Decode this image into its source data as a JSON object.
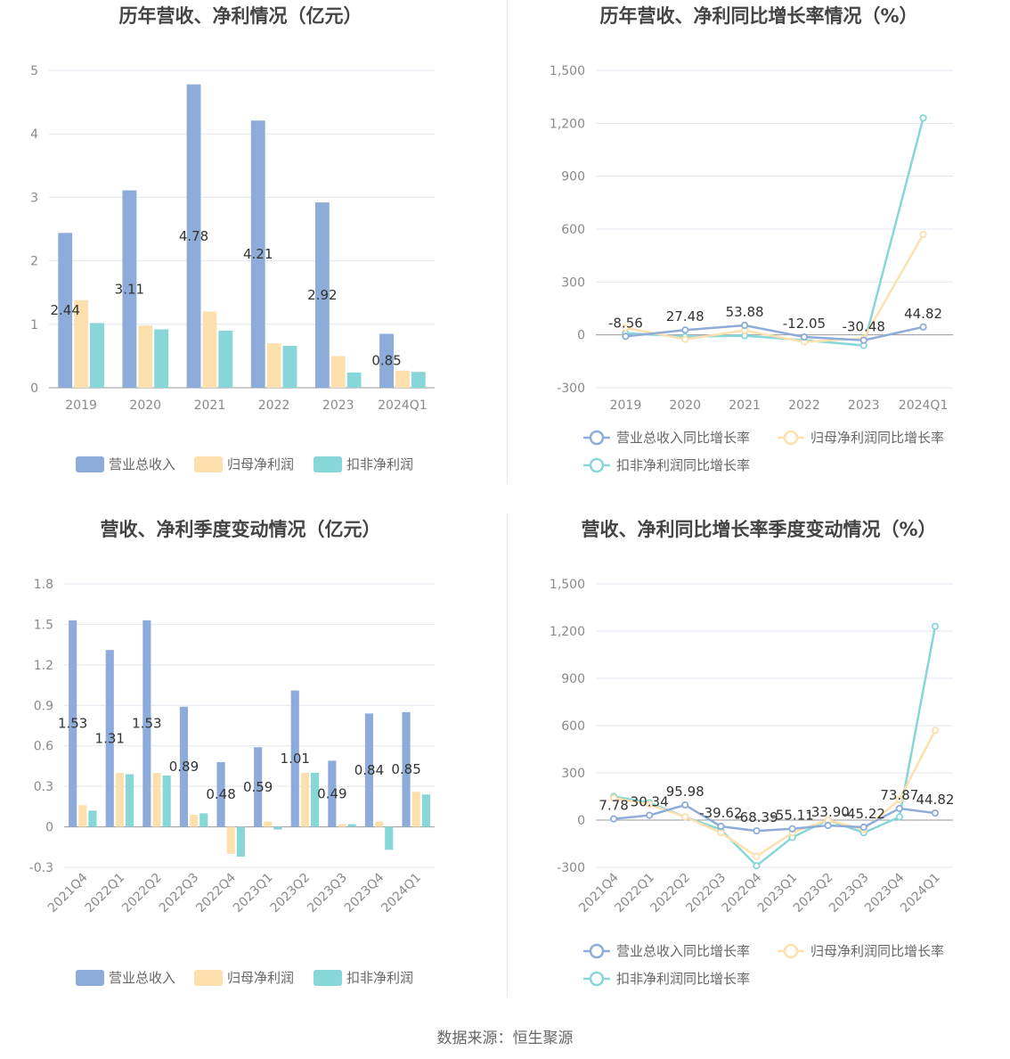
{
  "footer": "数据来源：恒生聚源",
  "colors": {
    "series1": "#8eacda",
    "series2": "#fde0ae",
    "series3": "#87d6d8",
    "grid": "#e3e6ef",
    "axis": "#999999"
  },
  "chart_data": [
    {
      "type": "bar",
      "title": "历年营收、净利情况（亿元）",
      "categories": [
        "2019",
        "2020",
        "2021",
        "2022",
        "2023",
        "2024Q1"
      ],
      "ylim": [
        0,
        5
      ],
      "yticks": [
        "0",
        "1",
        "2",
        "3",
        "4",
        "5"
      ],
      "ytick_values": [
        0,
        1,
        2,
        3,
        4,
        5
      ],
      "series": [
        {
          "name": "营业总收入",
          "values": [
            2.44,
            3.11,
            4.78,
            4.21,
            2.92,
            0.85
          ],
          "labels": [
            "2.44",
            "3.11",
            "4.78",
            "4.21",
            "2.92",
            "0.85"
          ]
        },
        {
          "name": "归母净利润",
          "values": [
            1.38,
            0.98,
            1.2,
            0.7,
            0.5,
            0.27
          ]
        },
        {
          "name": "扣非净利润",
          "values": [
            1.02,
            0.92,
            0.9,
            0.66,
            0.24,
            0.25
          ]
        }
      ],
      "legend": "bottom",
      "grid": true
    },
    {
      "type": "line",
      "title": "历年营收、净利同比增长率情况（%）",
      "categories": [
        "2019",
        "2020",
        "2021",
        "2022",
        "2023",
        "2024Q1"
      ],
      "ylim": [
        -300,
        1500
      ],
      "yticks": [
        "-300",
        "0",
        "300",
        "600",
        "900",
        "1,200",
        "1,500"
      ],
      "ytick_values": [
        -300,
        0,
        300,
        600,
        900,
        1200,
        1500
      ],
      "series": [
        {
          "name": "营业总收入同比增长率",
          "values": [
            -8.56,
            27.48,
            53.88,
            -12.05,
            -30.48,
            44.82
          ],
          "labels": [
            "-8.56",
            "27.48",
            "53.88",
            "-12.05",
            "-30.48",
            "44.82"
          ]
        },
        {
          "name": "归母净利润同比增长率",
          "values": [
            40,
            -25,
            25,
            -40,
            -20,
            570
          ]
        },
        {
          "name": "扣非净利润同比增长率",
          "values": [
            10,
            -10,
            -5,
            -30,
            -60,
            1230
          ]
        }
      ],
      "legend": "bottom",
      "grid": true
    },
    {
      "type": "bar",
      "title": "营收、净利季度变动情况（亿元）",
      "categories": [
        "2021Q4",
        "2022Q1",
        "2022Q2",
        "2022Q3",
        "2022Q4",
        "2023Q1",
        "2023Q2",
        "2023Q3",
        "2023Q4",
        "2024Q1"
      ],
      "ylim": [
        -0.3,
        1.8
      ],
      "yticks": [
        "-0.3",
        "0",
        "0.3",
        "0.6",
        "0.9",
        "1.2",
        "1.5",
        "1.8"
      ],
      "ytick_values": [
        -0.3,
        0,
        0.3,
        0.6,
        0.9,
        1.2,
        1.5,
        1.8
      ],
      "series": [
        {
          "name": "营业总收入",
          "values": [
            1.53,
            1.31,
            1.53,
            0.89,
            0.48,
            0.59,
            1.01,
            0.49,
            0.84,
            0.85
          ],
          "labels": [
            "1.53",
            "1.31",
            "1.53",
            "0.89",
            "0.48",
            "0.59",
            "1.01",
            "0.49",
            "0.84",
            "0.85"
          ]
        },
        {
          "name": "归母净利润",
          "values": [
            0.16,
            0.4,
            0.4,
            0.09,
            -0.2,
            0.04,
            0.4,
            0.02,
            0.04,
            0.26
          ]
        },
        {
          "name": "扣非净利润",
          "values": [
            0.12,
            0.39,
            0.38,
            0.1,
            -0.22,
            -0.02,
            0.4,
            0.02,
            -0.17,
            0.24
          ]
        }
      ],
      "legend": "bottom",
      "grid": true
    },
    {
      "type": "line",
      "title": "营收、净利同比增长率季度变动情况（%）",
      "categories": [
        "2021Q4",
        "2022Q1",
        "2022Q2",
        "2022Q3",
        "2022Q4",
        "2023Q1",
        "2023Q2",
        "2023Q3",
        "2023Q4",
        "2024Q1"
      ],
      "ylim": [
        -300,
        1500
      ],
      "yticks": [
        "-300",
        "0",
        "300",
        "600",
        "900",
        "1,200",
        "1,500"
      ],
      "ytick_values": [
        -300,
        0,
        300,
        600,
        900,
        1200,
        1500
      ],
      "series": [
        {
          "name": "营业总收入同比增长率",
          "values": [
            7.78,
            30.34,
            95.98,
            -39.62,
            -68.39,
            -55.11,
            -33.9,
            -45.22,
            73.87,
            44.82
          ],
          "labels": [
            "7.78",
            "30.34",
            "95.98",
            "-39.62",
            "-68.39",
            "-55.11",
            "-33.90",
            "-45.22",
            "73.87",
            "44.82"
          ]
        },
        {
          "name": "归母净利润同比增长率",
          "values": [
            140,
            100,
            20,
            -80,
            -230,
            -80,
            0,
            -60,
            130,
            570
          ]
        },
        {
          "name": "扣非净利润同比增长率",
          "values": [
            150,
            110,
            20,
            -60,
            -290,
            -110,
            0,
            -80,
            20,
            1230
          ]
        }
      ],
      "legend": "bottom",
      "grid": true
    }
  ]
}
